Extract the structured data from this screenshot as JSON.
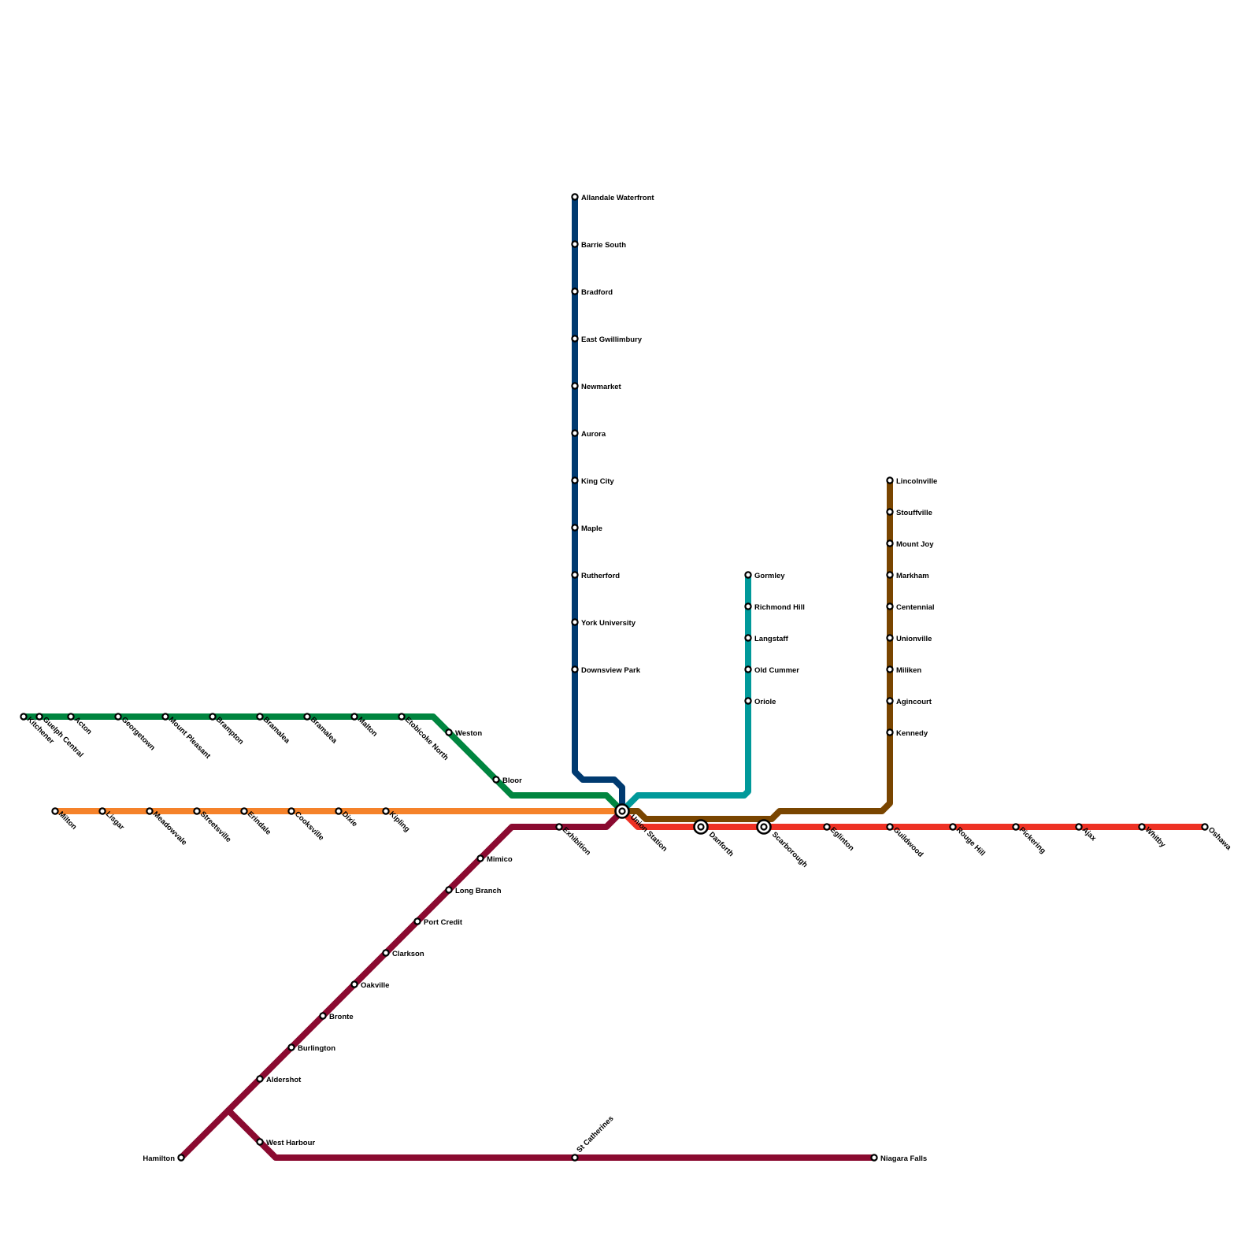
{
  "lines": [
    {
      "id": "kitchener",
      "color": "#00853F"
    },
    {
      "id": "milton",
      "color": "#F5822A"
    },
    {
      "id": "lakeshore-west",
      "color": "#8A0A30"
    },
    {
      "id": "barrie",
      "color": "#003A70"
    },
    {
      "id": "richmond-hill",
      "color": "#00999A"
    },
    {
      "id": "stouffville",
      "color": "#794500"
    },
    {
      "id": "lakeshore-east",
      "color": "#EE3124"
    }
  ],
  "stations": {
    "kitchener": "Kitchener",
    "guelph_central": "Guelph Central",
    "acton": "Acton",
    "georgetown": "Georgetown",
    "mount_pleasant": "Mount Pleasant",
    "brampton": "Brampton",
    "bramalea_1": "Bramalea",
    "bramalea_2": "Bramalea",
    "malton": "Malton",
    "etobicoke_north": "Etobicoke North",
    "weston": "Weston",
    "bloor": "Bloor",
    "milton": "Milton",
    "lisgar": "Lisgar",
    "meadowvale": "Meadowvale",
    "streetsville": "Streetsville",
    "erindale": "Erindale",
    "cooksville": "Cooksville",
    "dixie": "Dixie",
    "kipling": "Kipling",
    "union_station": "Union Station",
    "exhibition": "Exhibition",
    "mimico": "Mimico",
    "long_branch": "Long Branch",
    "port_credit": "Port Credit",
    "clarkson": "Clarkson",
    "oakville": "Oakville",
    "bronte": "Bronte",
    "burlington": "Burlington",
    "aldershot": "Aldershot",
    "west_harbour": "West Harbour",
    "hamilton": "Hamilton",
    "st_catherines": "St Catherines",
    "niagara_falls": "Niagara Falls",
    "allandale_waterfront": "Allandale Waterfront",
    "barrie_south": "Barrie South",
    "bradford": "Bradford",
    "east_gwillimbury": "East Gwillimbury",
    "newmarket": "Newmarket",
    "aurora": "Aurora",
    "king_city": "King City",
    "maple": "Maple",
    "rutherford": "Rutherford",
    "york_university": "York University",
    "downsview_park": "Downsview Park",
    "gormley": "Gormley",
    "richmond_hill": "Richmond Hill",
    "langstaff": "Langstaff",
    "old_cummer": "Old Cummer",
    "oriole": "Oriole",
    "lincolnville": "Lincolnville",
    "stouffville": "Stouffville",
    "mount_joy": "Mount Joy",
    "markham": "Markham",
    "centennial": "Centennial",
    "unionville": "Unionville",
    "miliken": "Miliken",
    "agincourt": "Agincourt",
    "kennedy": "Kennedy",
    "danforth": "Danforth",
    "scarborough": "Scarborough",
    "eglinton": "Eglinton",
    "guildwood": "Guildwood",
    "rouge_hill": "Rouge Hill",
    "pickering": "Pickering",
    "ajax": "Ajax",
    "whitby": "Whitby",
    "oshawa": "Oshawa"
  }
}
